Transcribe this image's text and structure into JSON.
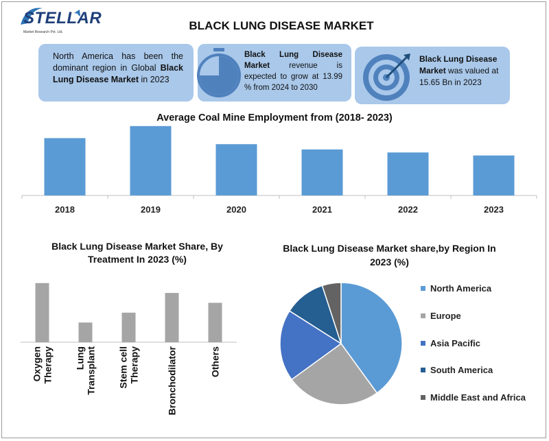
{
  "header": {
    "logo_text": "STELLAR",
    "logo_sub": "Market Research Pvt. Ltd.",
    "title": "BLACK LUNG DISEASE MARKET"
  },
  "info_boxes": [
    {
      "text_parts": [
        "North America has been the dominant region in Global ",
        "Black Lung Disease Market",
        " in 2023"
      ],
      "icon": "globe-icon"
    },
    {
      "text_parts": [
        "Black Lung Disease Market",
        " revenue is expected to grow at 13.99 % from 2024 to 2030"
      ],
      "icon": "stopwatch-icon"
    },
    {
      "text_parts": [
        "Black Lung Disease Market",
        " was valued at 15.65 Bn in 2023"
      ],
      "icon": "target-icon"
    }
  ],
  "chart_data": [
    {
      "type": "bar",
      "title": "Average Coal Mine Employment from (2018- 2023)",
      "categories": [
        "2018",
        "2019",
        "2020",
        "2021",
        "2022",
        "2023"
      ],
      "values": [
        76,
        92,
        68,
        61,
        57,
        53
      ],
      "ylim": [
        0,
        100
      ],
      "color": "#5b9bd5"
    },
    {
      "type": "bar",
      "title": "Black Lung Disease Market Share, By Treatment In 2023 (%)",
      "categories": [
        "Oxygen Therapy",
        "Lung Transplant",
        "Stem cell Therapy",
        "Bronchodilator",
        "Others"
      ],
      "values": [
        30,
        10,
        15,
        25,
        20
      ],
      "ylim": [
        0,
        32
      ],
      "color": "#a5a5a5"
    },
    {
      "type": "pie",
      "title": "Black Lung Disease Market share,by Region In 2023 (%)",
      "categories": [
        "North America",
        "Europe",
        "Asia Pacific",
        "South America",
        "Middle East and Africa"
      ],
      "values": [
        40,
        25,
        19,
        11,
        5
      ],
      "colors": [
        "#5b9bd5",
        "#a5a5a5",
        "#4472c4",
        "#255e91",
        "#636363"
      ],
      "legend": "right"
    }
  ]
}
